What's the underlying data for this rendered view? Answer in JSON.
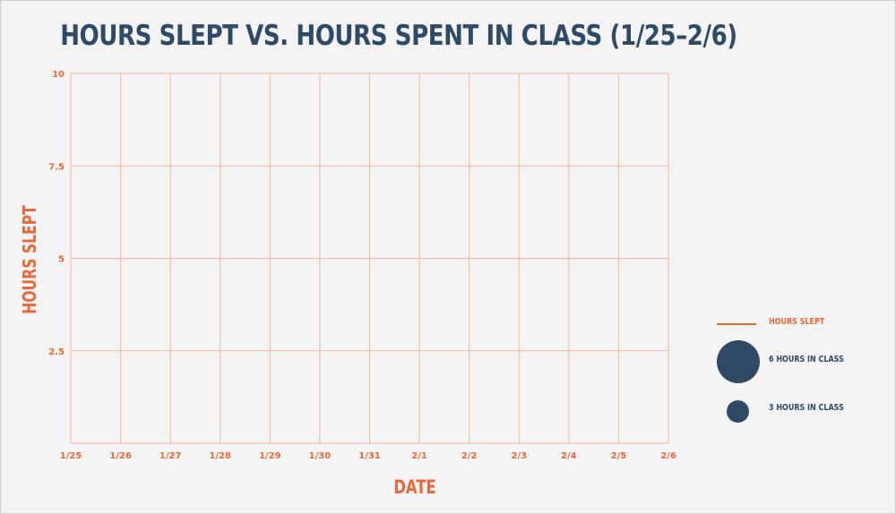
{
  "colors": {
    "accent": "#e8693b",
    "navy": "#2f4a66",
    "grid": "#f2b79e",
    "background": "#f4f4f4"
  },
  "chart_data": {
    "type": "scatter",
    "title": "HOURS SLEPT VS. HOURS SPENT IN CLASS (1/25–2/6)",
    "xlabel": "DATE",
    "ylabel": "HOURS SLEPT",
    "categories": [
      "1/25",
      "1/26",
      "1/27",
      "1/28",
      "1/29",
      "1/30",
      "1/31",
      "2/1",
      "2/2",
      "2/3",
      "2/4",
      "2/5",
      "2/6"
    ],
    "y_ticks": [
      "10",
      "7.5",
      "5",
      "2.5"
    ],
    "ylim": [
      0,
      10
    ],
    "grid": true,
    "legend_position": "right",
    "series": []
  },
  "legend": {
    "line_label": "HOURS SLEPT",
    "large_label": "6 HOURS IN CLASS",
    "small_label": "3 HOURS IN CLASS"
  }
}
